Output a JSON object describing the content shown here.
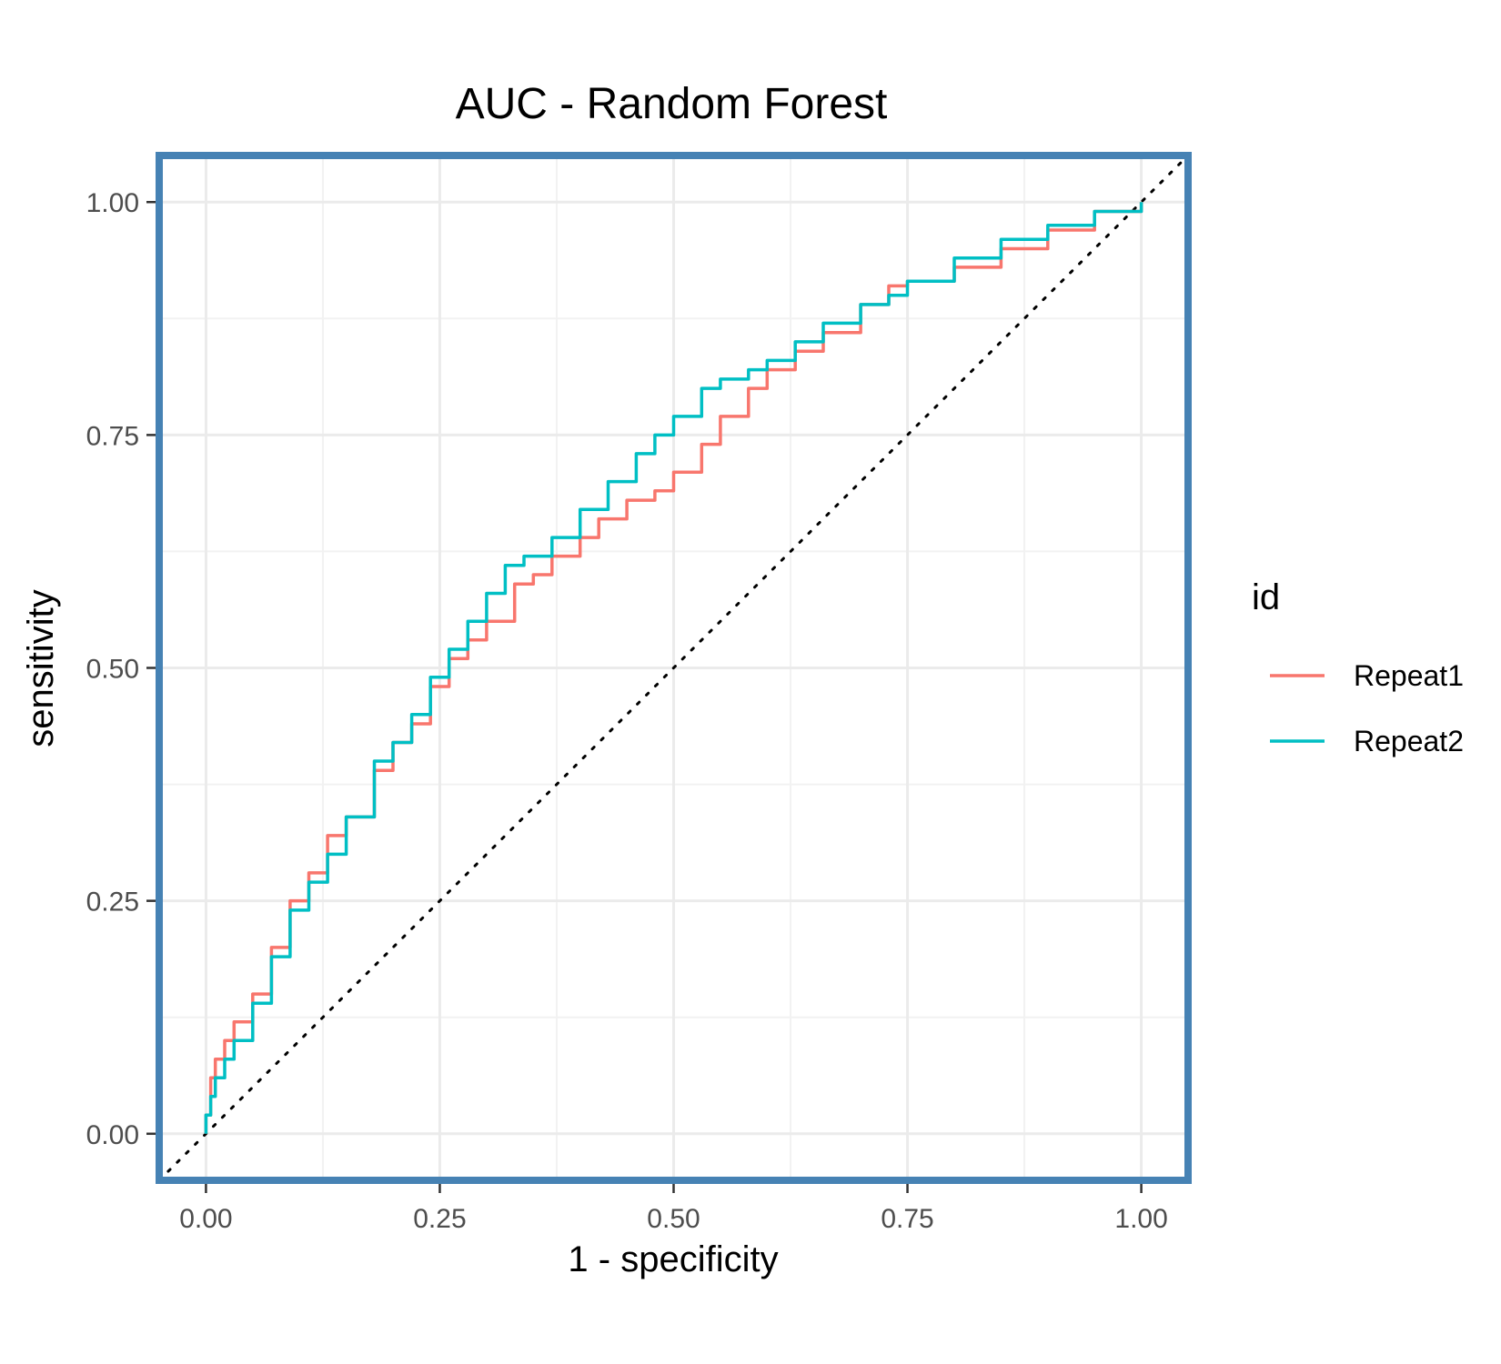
{
  "chart_data": {
    "type": "line",
    "title": "AUC - Random Forest",
    "xlabel": "1 - specificity",
    "ylabel": "sensitivity",
    "xlim": [
      -0.05,
      1.05
    ],
    "ylim": [
      -0.05,
      1.05
    ],
    "x_ticks": [
      "0.00",
      "0.25",
      "0.50",
      "0.75",
      "1.00"
    ],
    "y_ticks": [
      "0.00",
      "0.25",
      "0.50",
      "0.75",
      "1.00"
    ],
    "grid": true,
    "legend": {
      "title": "id",
      "position": "right"
    },
    "reference_line": {
      "style": "dotted",
      "color": "#000000",
      "from": [
        -0.05,
        -0.05
      ],
      "to": [
        1.05,
        1.05
      ]
    },
    "series": [
      {
        "name": "Repeat1",
        "color": "#F8766D",
        "x": [
          0.0,
          0.0,
          0.005,
          0.01,
          0.02,
          0.03,
          0.05,
          0.07,
          0.09,
          0.11,
          0.13,
          0.15,
          0.18,
          0.2,
          0.22,
          0.24,
          0.26,
          0.28,
          0.3,
          0.33,
          0.35,
          0.37,
          0.4,
          0.42,
          0.45,
          0.48,
          0.5,
          0.53,
          0.55,
          0.58,
          0.6,
          0.63,
          0.66,
          0.7,
          0.73,
          0.75,
          0.8,
          0.85,
          0.9,
          0.95,
          1.0
        ],
        "y": [
          0.0,
          0.02,
          0.06,
          0.08,
          0.1,
          0.12,
          0.15,
          0.2,
          0.25,
          0.28,
          0.32,
          0.34,
          0.39,
          0.42,
          0.44,
          0.48,
          0.51,
          0.53,
          0.55,
          0.59,
          0.6,
          0.62,
          0.64,
          0.66,
          0.68,
          0.69,
          0.71,
          0.74,
          0.77,
          0.8,
          0.82,
          0.84,
          0.86,
          0.89,
          0.91,
          0.915,
          0.93,
          0.95,
          0.97,
          0.99,
          1.0
        ]
      },
      {
        "name": "Repeat2",
        "color": "#00BFC4",
        "x": [
          0.0,
          0.0,
          0.005,
          0.01,
          0.02,
          0.03,
          0.05,
          0.07,
          0.09,
          0.11,
          0.13,
          0.15,
          0.18,
          0.2,
          0.22,
          0.24,
          0.26,
          0.28,
          0.3,
          0.32,
          0.34,
          0.37,
          0.4,
          0.43,
          0.46,
          0.48,
          0.5,
          0.53,
          0.55,
          0.58,
          0.6,
          0.63,
          0.66,
          0.7,
          0.73,
          0.75,
          0.8,
          0.85,
          0.9,
          0.95,
          1.0
        ],
        "y": [
          0.0,
          0.02,
          0.04,
          0.06,
          0.08,
          0.1,
          0.14,
          0.19,
          0.24,
          0.27,
          0.3,
          0.34,
          0.4,
          0.42,
          0.45,
          0.49,
          0.52,
          0.55,
          0.58,
          0.61,
          0.62,
          0.64,
          0.67,
          0.7,
          0.73,
          0.75,
          0.77,
          0.8,
          0.81,
          0.82,
          0.83,
          0.85,
          0.87,
          0.89,
          0.9,
          0.915,
          0.94,
          0.96,
          0.975,
          0.99,
          1.0
        ]
      }
    ]
  },
  "colors": {
    "panel_border": "#4682B4",
    "grid_major": "#EBEBEB",
    "grid_minor": "#F2F2F2"
  }
}
